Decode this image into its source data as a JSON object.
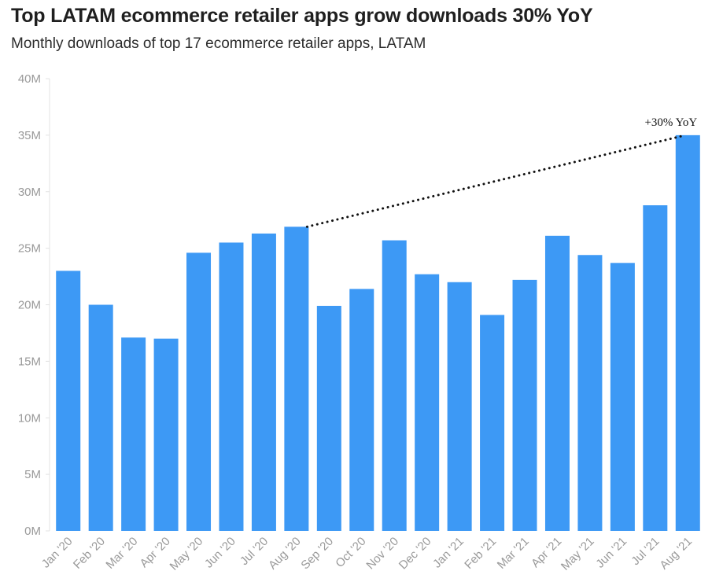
{
  "header": {
    "title": "Top LATAM ecommerce retailer apps grow downloads 30% YoY",
    "subtitle": "Monthly downloads of top 17 ecommerce retailer apps, LATAM"
  },
  "chart_data": {
    "type": "bar",
    "categories": [
      "Jan '20",
      "Feb '20",
      "Mar '20",
      "Apr '20",
      "May '20",
      "Jun '20",
      "Jul '20",
      "Aug '20",
      "Sep '20",
      "Oct '20",
      "Nov '20",
      "Dec '20",
      "Jan '21",
      "Feb '21",
      "Mar '21",
      "Apr '21",
      "May '21",
      "Jun '21",
      "Jul '21",
      "Aug '21"
    ],
    "values": [
      23.0,
      20.0,
      17.1,
      17.0,
      24.6,
      25.5,
      26.3,
      26.9,
      19.9,
      21.4,
      25.7,
      22.7,
      22.0,
      19.1,
      22.2,
      26.1,
      24.4,
      23.7,
      28.8,
      35.0
    ],
    "units": "M",
    "ylim": [
      0,
      40
    ],
    "yticks": [
      0,
      5,
      10,
      15,
      20,
      25,
      30,
      35,
      40
    ],
    "ytick_labels": [
      "0M",
      "5M",
      "10M",
      "15M",
      "20M",
      "25M",
      "30M",
      "35M",
      "40M"
    ],
    "xlabel": "",
    "ylabel": "",
    "grid": false,
    "bar_color": "#3d99f5",
    "annotation": {
      "text": "+30% YoY",
      "from_category": "Aug '20",
      "to_category": "Aug '21"
    }
  }
}
